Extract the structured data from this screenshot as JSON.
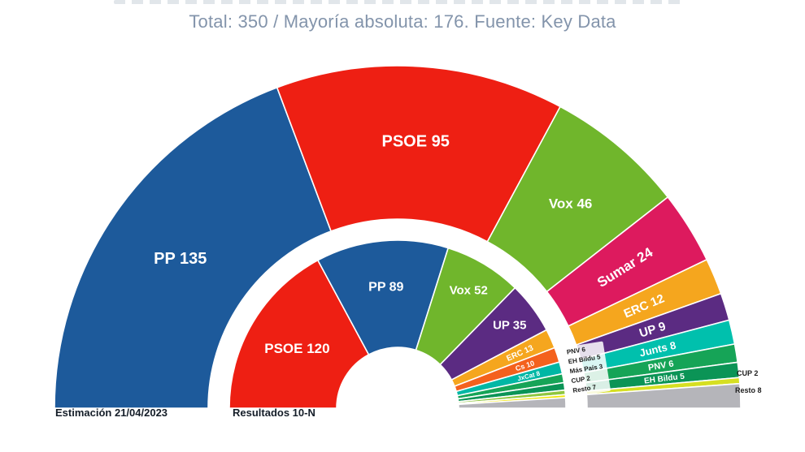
{
  "title": {
    "text": "Total: 350 / Mayoría absoluta: 176. Fuente: Key Data",
    "color": "#8394ab"
  },
  "chart_data": {
    "type": "pie",
    "variant": "hemicycle-double-ring",
    "title": "Total: 350 / Mayoría absoluta: 176. Fuente: Key Data",
    "total_seats": 350,
    "majority_threshold": 176,
    "source": "Key Data",
    "legend_position": "bottom-left",
    "rings": [
      {
        "name": "estimation",
        "legend_label": "Estimación 21/04/2023",
        "segments": [
          {
            "party": "PP",
            "slug": "pp",
            "seats": 135,
            "color": "#1d5a9b",
            "label": "PP 135",
            "label_r": 325,
            "label_rotate": 0,
            "label_size": 20
          },
          {
            "party": "PSOE",
            "slug": "psoe",
            "seats": 95,
            "color": "#ee1f13",
            "label": "PSOE 95",
            "label_r": 330,
            "label_rotate": 0,
            "label_size": 20
          },
          {
            "party": "Vox",
            "slug": "vox",
            "seats": 46,
            "color": "#70b62c",
            "label": "Vox 46",
            "label_r": 330,
            "label_rotate": 0,
            "label_size": 17
          },
          {
            "party": "Sumar",
            "slug": "sumar",
            "seats": 24,
            "color": "#dd1a5e",
            "label": "Sumar 24",
            "label_r": 329,
            "label_rotate": -32,
            "label_size": 17
          },
          {
            "party": "ERC",
            "slug": "erc",
            "seats": 12,
            "color": "#f5a61e",
            "label": "ERC 12",
            "label_r": 328,
            "label_rotate": -23,
            "label_size": 15
          },
          {
            "party": "UP",
            "slug": "up",
            "seats": 9,
            "color": "#5b2b82",
            "label": "UP 9",
            "label_r": 328,
            "label_rotate": -17,
            "label_size": 15
          },
          {
            "party": "Junts",
            "slug": "junts",
            "seats": 8,
            "color": "#00c0ad",
            "label": "Junts 8",
            "label_r": 328,
            "label_rotate": -13,
            "label_size": 13
          },
          {
            "party": "PNV",
            "slug": "pnv",
            "seats": 6,
            "color": "#16a457",
            "label": "PNV 6",
            "label_r": 328,
            "label_rotate": -10,
            "label_size": 11
          },
          {
            "party": "EH Bildu",
            "slug": "eh-bildu",
            "seats": 5,
            "color": "#0b9456",
            "label": "EH Bildu 5",
            "label_r": 330,
            "label_rotate": -7,
            "label_size": 10
          },
          {
            "party": "CUP",
            "slug": "cup",
            "seats": 2,
            "color": "#d6df22",
            "label": null
          },
          {
            "party": "Resto",
            "slug": "resto",
            "seats": 8,
            "color": "#b5b5ba",
            "label": null
          }
        ]
      },
      {
        "name": "results",
        "legend_label": "Resultados 10-N",
        "segments": [
          {
            "party": "PSOE",
            "slug": "psoe",
            "seats": 120,
            "color": "#ee1f13",
            "label": "PSOE 120",
            "label_r": 144,
            "label_rotate": 0,
            "label_size": 17
          },
          {
            "party": "PP",
            "slug": "pp",
            "seats": 89,
            "color": "#1d5a9b",
            "label": "PP 89",
            "label_r": 151,
            "label_rotate": 0,
            "label_size": 16
          },
          {
            "party": "Vox",
            "slug": "vox",
            "seats": 52,
            "color": "#70b62c",
            "label": "Vox 52",
            "label_r": 170,
            "label_rotate": 0,
            "label_size": 15
          },
          {
            "party": "UP",
            "slug": "up",
            "seats": 35,
            "color": "#5b2b82",
            "label": "UP 35",
            "label_r": 172,
            "label_rotate": 0,
            "label_size": 15
          },
          {
            "party": "ERC",
            "slug": "erc",
            "seats": 13,
            "color": "#f5a61e",
            "label": "ERC 13",
            "label_r": 165,
            "label_rotate": -24,
            "label_size": 10
          },
          {
            "party": "Cs",
            "slug": "cs",
            "seats": 10,
            "color": "#f4611d",
            "label": "Cs 10",
            "label_r": 165,
            "label_rotate": -18,
            "label_size": 9
          },
          {
            "party": "JxCat",
            "slug": "jxcat",
            "seats": 8,
            "color": "#00b7a5",
            "label": "JxCat 8",
            "label_r": 166,
            "label_rotate": -14,
            "label_size": 8
          },
          {
            "party": "PNV",
            "slug": "pnv",
            "seats": 6,
            "color": "#16a457",
            "label": null
          },
          {
            "party": "EH Bildu",
            "slug": "eh-bildu",
            "seats": 5,
            "color": "#0b9456",
            "label": null
          },
          {
            "party": "Más País",
            "slug": "mas-pais",
            "seats": 3,
            "color": "#8fc63f",
            "label": null
          },
          {
            "party": "CUP",
            "slug": "cup",
            "seats": 2,
            "color": "#f0e60c",
            "label": null
          },
          {
            "party": "Resto",
            "slug": "resto",
            "seats": 7,
            "color": "#b5b5ba",
            "label": null
          }
        ]
      }
    ],
    "outer_external_labels": {
      "cup": "CUP 2",
      "resto": "Resto 8"
    },
    "inner_small_labels": [
      "PNV 6",
      "EH Bildu 5",
      "Más País 3",
      "CUP 2",
      "Resto 7"
    ]
  }
}
